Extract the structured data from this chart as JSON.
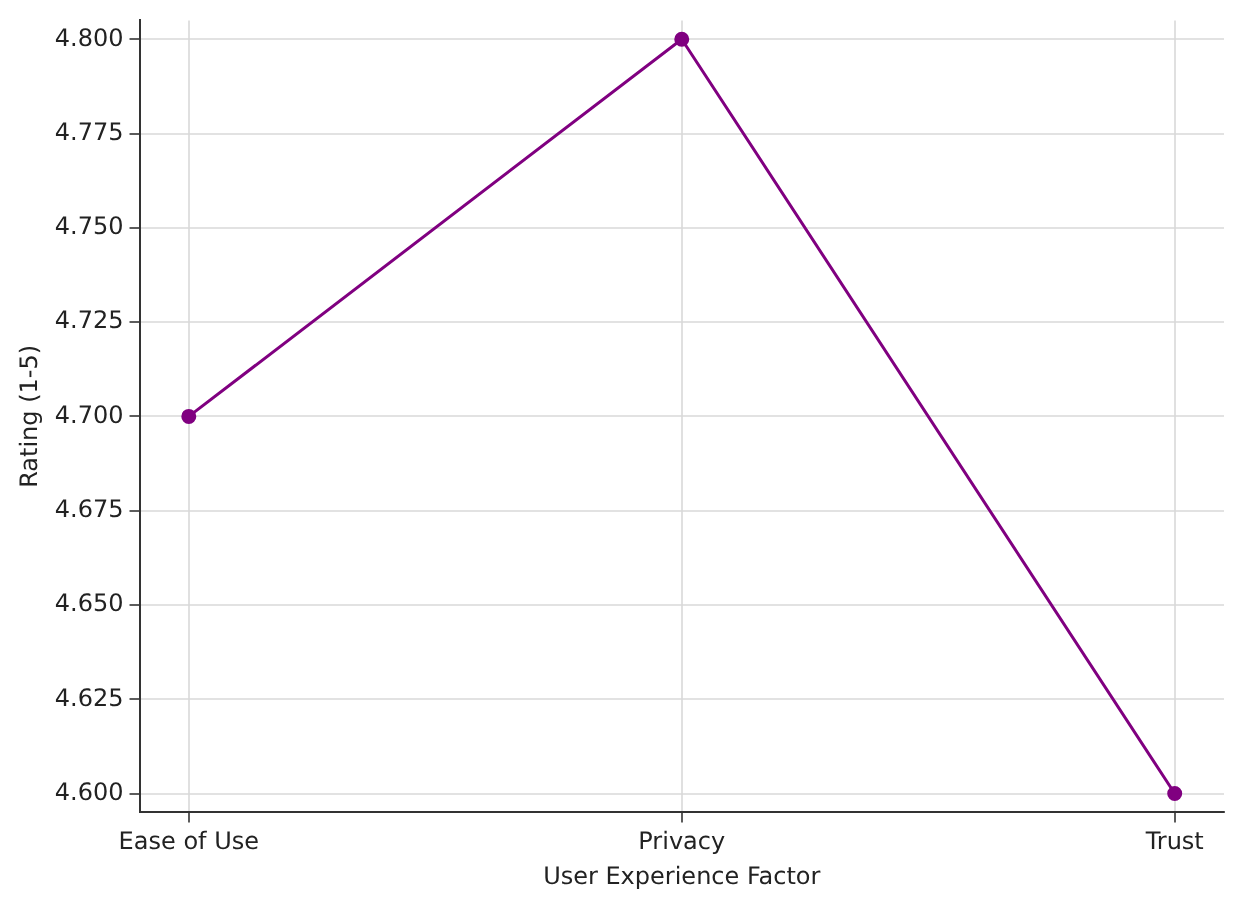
{
  "chart_data": {
    "type": "line",
    "xlabel": "User Experience Factor",
    "ylabel": "Rating (1-5)",
    "categories": [
      "Ease of Use",
      "Privacy",
      "Trust"
    ],
    "series": [
      {
        "color": "#800080",
        "values": [
          4.7,
          4.8,
          4.6
        ]
      }
    ],
    "ylim": [
      4.595,
      4.805
    ],
    "yticks": [
      {
        "value": 4.6,
        "label": "4.600"
      },
      {
        "value": 4.625,
        "label": "4.625"
      },
      {
        "value": 4.65,
        "label": "4.650"
      },
      {
        "value": 4.675,
        "label": "4.675"
      },
      {
        "value": 4.7,
        "label": "4.700"
      },
      {
        "value": 4.725,
        "label": "4.725"
      },
      {
        "value": 4.75,
        "label": "4.750"
      },
      {
        "value": 4.775,
        "label": "4.775"
      },
      {
        "value": 4.8,
        "label": "4.800"
      }
    ],
    "grid": true,
    "marker": "circle",
    "line_style": "solid",
    "legend": false
  }
}
